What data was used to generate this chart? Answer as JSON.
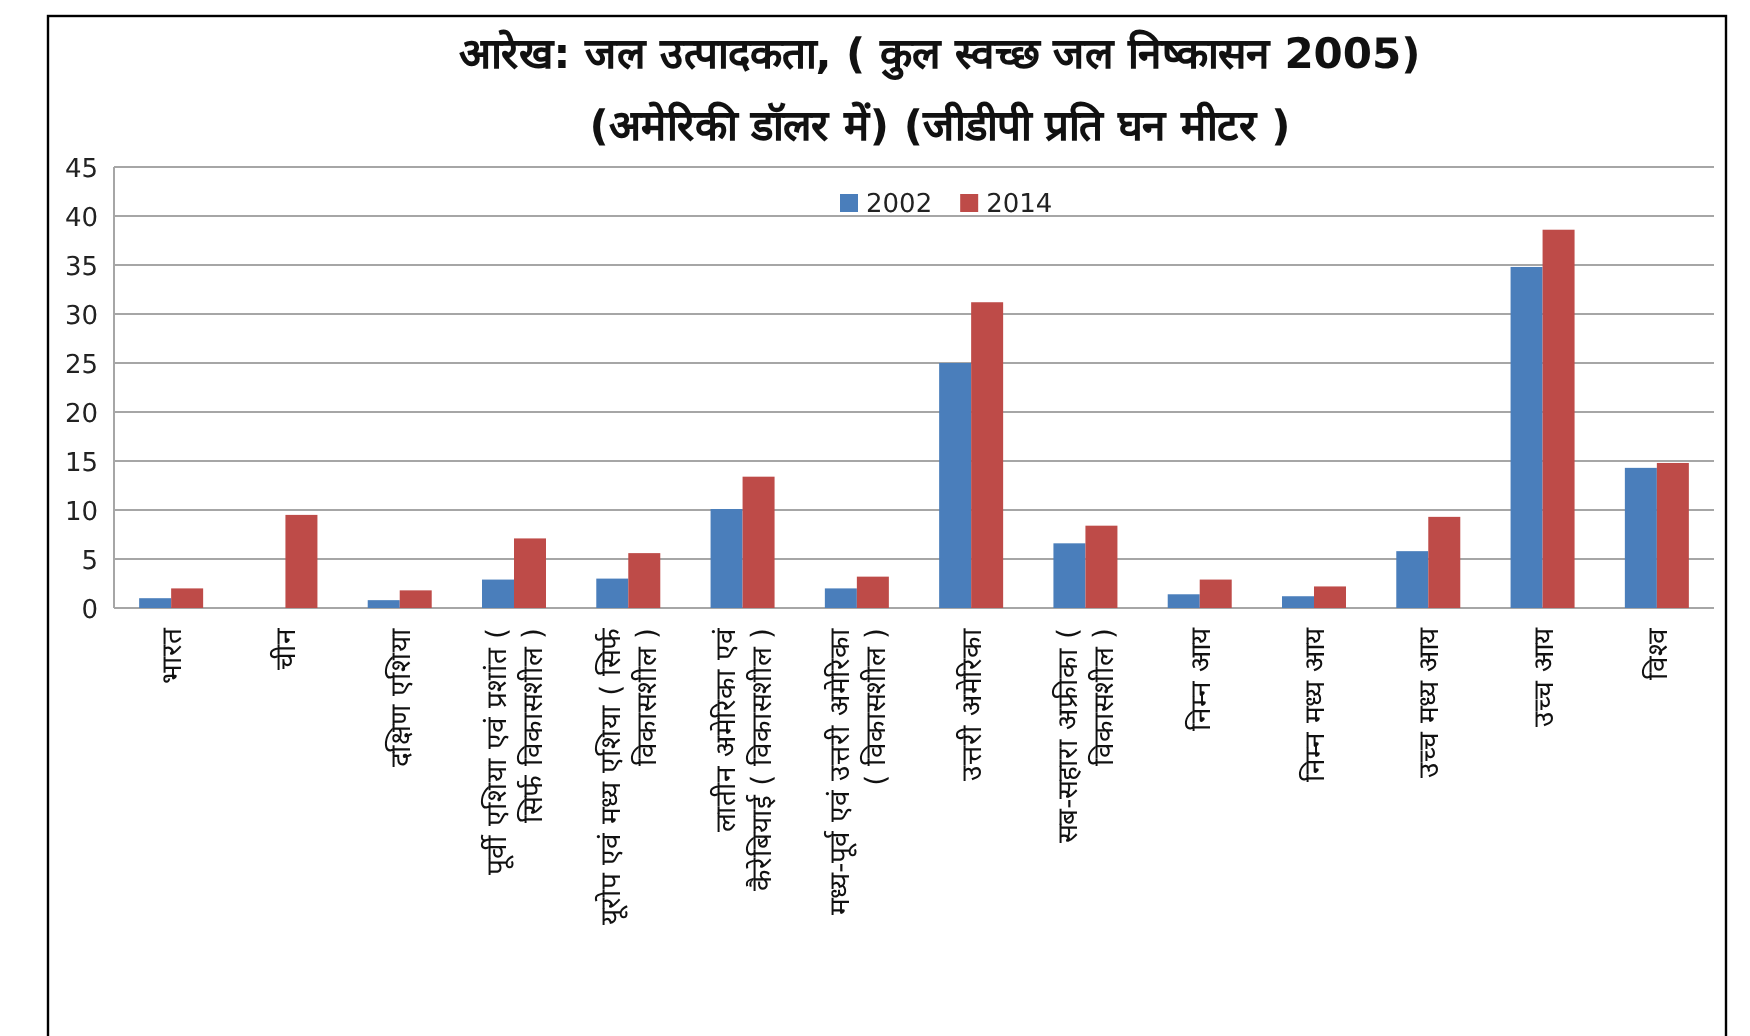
{
  "chart_data": {
    "type": "bar",
    "title": "आरेख: जल उत्पादकता, ( कुल स्वच्छ जल निष्कासन 2005)",
    "subtitle": "(अमेरिकी डॉलर में) (जीडीपी प्रति घन मीटर )",
    "categories": [
      "भारत",
      "चीन",
      "दक्षिण एशिया",
      "पूर्वी एशिया एवं प्रशांत ( सिर्फ विकासशील )",
      "यूरोप एवं मध्य एशिया ( सिर्फ विकासशील )",
      "लातीन अमेरिका एवं कैरेबियाई ( विकासशील )",
      "मध्य-पूर्व एवं उत्तरी अमेरिका ( विकासशील )",
      "उत्तरी अमेरिका",
      "सब-सहारा अफ्रीका ( विकासशील )",
      "निम्न आय",
      "निम्न मध्य आय",
      "उच्च मध्य आय",
      "उच्च आय",
      "विश्व"
    ],
    "series": [
      {
        "name": "2002",
        "color": "#4a7ebb",
        "values": [
          1.0,
          null,
          0.8,
          2.9,
          3.0,
          10.1,
          2.0,
          25.0,
          6.6,
          1.4,
          1.2,
          5.8,
          34.8,
          14.3
        ]
      },
      {
        "name": "2014",
        "color": "#be4b48",
        "values": [
          2.0,
          9.5,
          1.8,
          7.1,
          5.6,
          13.4,
          3.2,
          31.2,
          8.4,
          2.9,
          2.2,
          9.3,
          38.6,
          14.8
        ]
      }
    ],
    "ylim": [
      0,
      45
    ],
    "yticks": [
      0,
      5,
      10,
      15,
      20,
      25,
      30,
      35,
      40,
      45
    ],
    "grid": "y",
    "legend": "top"
  }
}
